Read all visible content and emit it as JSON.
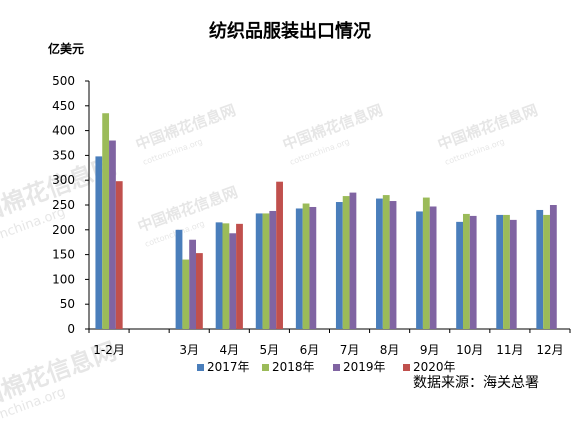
{
  "chart_data": {
    "type": "bar",
    "title": "纺织品服装出口情况",
    "ylabel": "亿美元",
    "xlabel": "",
    "ylim": [
      0,
      500
    ],
    "yticks": [
      0,
      50,
      100,
      150,
      200,
      250,
      300,
      350,
      400,
      450,
      500
    ],
    "categories": [
      "1-2月",
      "",
      "3月",
      "4月",
      "5月",
      "6月",
      "7月",
      "8月",
      "9月",
      "10月",
      "11月",
      "12月"
    ],
    "series": [
      {
        "name": "2017年",
        "color": "#4a7ebb",
        "values": [
          348,
          null,
          200,
          215,
          233,
          243,
          256,
          263,
          237,
          216,
          230,
          240
        ]
      },
      {
        "name": "2018年",
        "color": "#9bbb59",
        "values": [
          435,
          null,
          140,
          213,
          233,
          253,
          268,
          270,
          265,
          232,
          230,
          230
        ]
      },
      {
        "name": "2019年",
        "color": "#8064a2",
        "values": [
          380,
          null,
          180,
          193,
          238,
          246,
          275,
          258,
          247,
          228,
          220,
          250
        ]
      },
      {
        "name": "2020年",
        "color": "#c0504d",
        "values": [
          298,
          null,
          153,
          212,
          297,
          null,
          null,
          null,
          null,
          null,
          null,
          null
        ]
      }
    ],
    "grid": false,
    "legend_position": "bottom"
  },
  "source_note": "数据来源：海关总署",
  "watermark": {
    "text": "中国棉花信息网",
    "url": "cottonchina.org"
  }
}
